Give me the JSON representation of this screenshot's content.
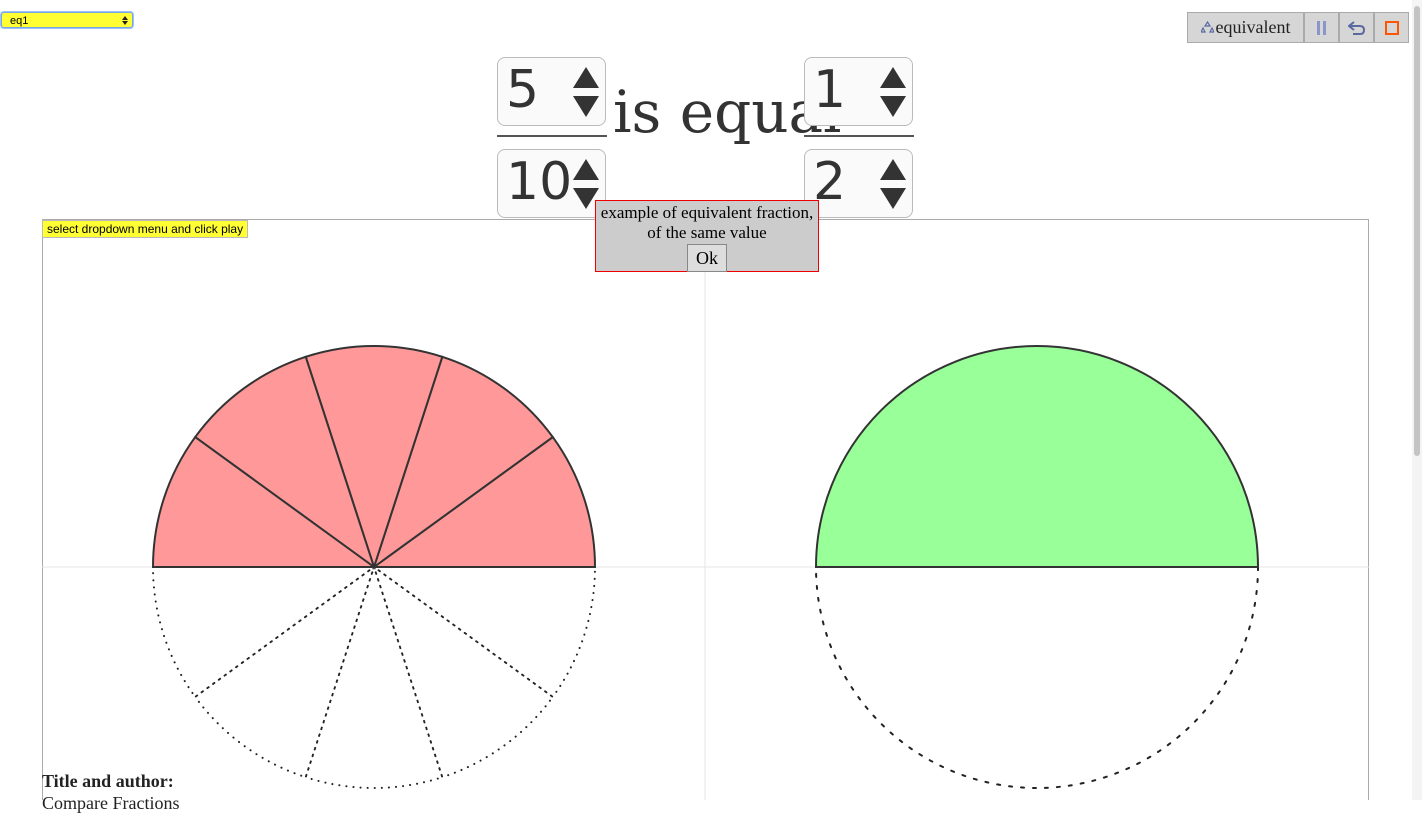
{
  "dropdown": {
    "selected": "eq1"
  },
  "toolbar": {
    "mode_button": "equivalent"
  },
  "fraction_left": {
    "numerator": 5,
    "denominator": 10
  },
  "relation": "is equal",
  "fraction_right": {
    "numerator": 1,
    "denominator": 2
  },
  "hint": "select dropdown menu and click play",
  "popup": {
    "message": "example of equivalent fraction, of the same value",
    "button": "Ok"
  },
  "footer": {
    "heading": "Title and author:",
    "title": "Compare Fractions"
  }
}
